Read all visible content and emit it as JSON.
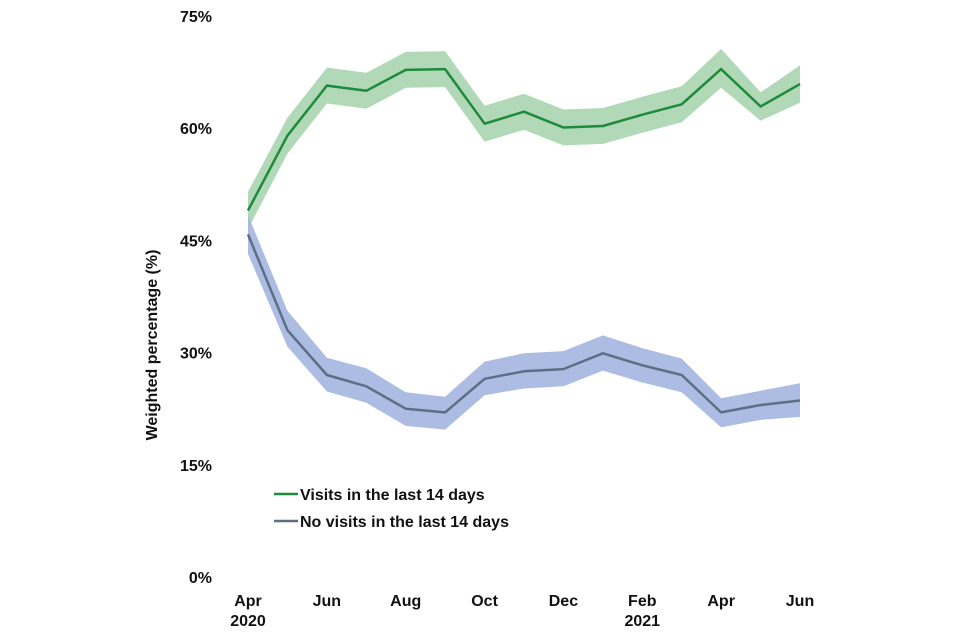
{
  "chart_data": {
    "type": "line",
    "ylabel": "Weighted  percentage (%)",
    "xlabel": "",
    "ylim": [
      0,
      75
    ],
    "y_ticks": [
      0,
      15,
      30,
      45,
      60,
      75
    ],
    "y_tick_labels": [
      "0%",
      "15%",
      "30%",
      "45%",
      "60%",
      "75%"
    ],
    "x": [
      "Apr 2020",
      "May 2020",
      "Jun 2020",
      "Jul 2020",
      "Aug 2020",
      "Sep 2020",
      "Oct 2020",
      "Nov 2020",
      "Dec 2020",
      "Jan 2021",
      "Feb 2021",
      "Mar 2021",
      "Apr 2021",
      "May 2021",
      "Jun 2021"
    ],
    "x_tick_labels": [
      {
        "index": 0,
        "month": "Apr",
        "year": "2020"
      },
      {
        "index": 2,
        "month": "Jun",
        "year": ""
      },
      {
        "index": 4,
        "month": "Aug",
        "year": ""
      },
      {
        "index": 6,
        "month": "Oct",
        "year": ""
      },
      {
        "index": 8,
        "month": "Dec",
        "year": ""
      },
      {
        "index": 10,
        "month": "Feb",
        "year": "2021"
      },
      {
        "index": 12,
        "month": "Apr",
        "year": ""
      },
      {
        "index": 14,
        "month": "Jun",
        "year": ""
      }
    ],
    "grid": false,
    "legend_position": "bottom-left",
    "series": [
      {
        "name": "Visits in the last 14 days",
        "line_color": "#1e8a3c",
        "band_color": "#a8d5b0",
        "values": [
          49.0,
          59.0,
          65.7,
          65.0,
          67.8,
          67.9,
          60.6,
          62.2,
          60.1,
          60.3,
          61.8,
          63.2,
          67.9,
          62.9,
          65.9
        ],
        "lower": [
          46.5,
          56.6,
          63.3,
          62.6,
          65.4,
          65.5,
          58.2,
          59.8,
          57.7,
          57.9,
          59.4,
          60.8,
          65.4,
          61.0,
          63.4
        ],
        "upper": [
          51.5,
          61.4,
          68.1,
          67.4,
          70.2,
          70.3,
          63.0,
          64.6,
          62.5,
          62.7,
          64.2,
          65.6,
          70.6,
          64.8,
          68.4
        ]
      },
      {
        "name": "No visits in the last 14 days",
        "line_color": "#5c6f85",
        "band_color": "#a4b5e0",
        "values": [
          45.8,
          33.0,
          27.0,
          25.5,
          22.5,
          22.0,
          26.5,
          27.5,
          27.8,
          29.9,
          28.3,
          27.0,
          22.0,
          23.0,
          23.6
        ],
        "lower": [
          43.2,
          30.8,
          24.8,
          23.3,
          20.2,
          19.7,
          24.3,
          25.2,
          25.5,
          27.6,
          26.0,
          24.7,
          20.0,
          21.0,
          21.4
        ],
        "upper": [
          48.4,
          35.6,
          29.3,
          27.9,
          24.7,
          24.1,
          28.8,
          29.9,
          30.2,
          32.3,
          30.6,
          29.2,
          23.9,
          24.9,
          25.9
        ]
      }
    ]
  }
}
